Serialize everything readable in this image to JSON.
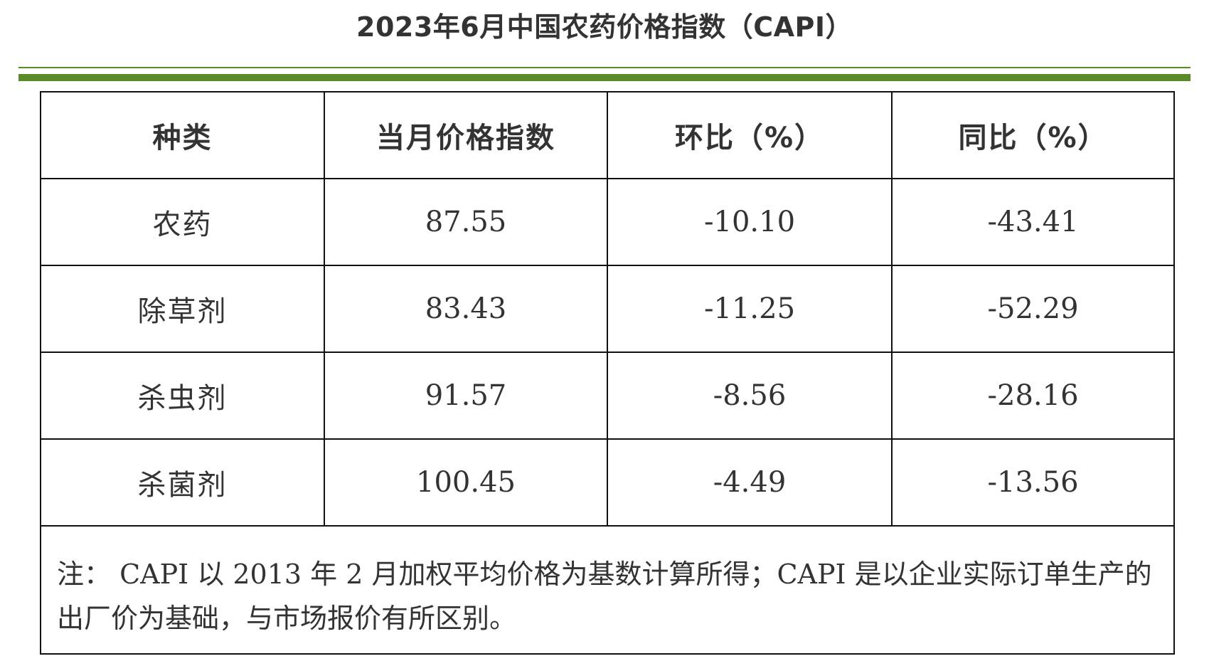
{
  "title": "2023年6月中国农药价格指数（CAPI）",
  "table": {
    "headers": [
      "种类",
      "当月价格指数",
      "环比（%）",
      "同比（%）"
    ],
    "rows": [
      {
        "kind": "农药",
        "index": "87.55",
        "mom": "-10.10",
        "yoy": "-43.41"
      },
      {
        "kind": "除草剂",
        "index": "83.43",
        "mom": "-11.25",
        "yoy": "-52.29"
      },
      {
        "kind": "杀虫剂",
        "index": "91.57",
        "mom": "-8.56",
        "yoy": "-28.16"
      },
      {
        "kind": "杀菌剂",
        "index": "100.45",
        "mom": "-4.49",
        "yoy": "-13.56"
      }
    ]
  },
  "note": "注： CAPI 以 2013 年 2 月加权平均价格为基数计算所得；CAPI 是以企业实际订单生产的出厂价为基础，与市场报价有所区别。",
  "colors": {
    "accent_green": "#5a8a2a",
    "border": "#111111",
    "text": "#333333"
  }
}
